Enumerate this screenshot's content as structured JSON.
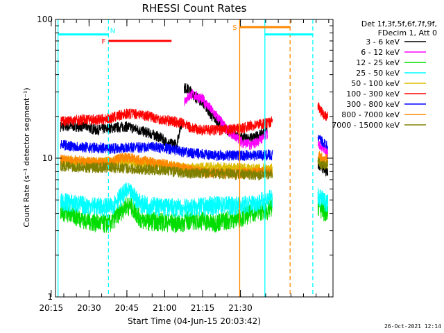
{
  "chart_data": {
    "type": "line",
    "title": "RHESSI Count Rates",
    "xlabel": "Start Time (04-Jun-15 20:03:42)",
    "ylabel": "Count Rate (s⁻¹ detector segment⁻¹)",
    "yscale": "log",
    "ylim": [
      1,
      100
    ],
    "xlim_minutes_after_start": [
      0,
      41
    ],
    "xticks": [
      {
        "label": "20:15",
        "minutes": 11.3
      },
      {
        "label": "20:30",
        "minutes": 26.3
      },
      {
        "label": "20:45",
        "minutes": 41.3
      },
      {
        "label": "21:00",
        "minutes": 56.3
      },
      {
        "label": "21:15",
        "minutes": 71.3
      },
      {
        "label": "21:30",
        "minutes": 86.3
      }
    ],
    "yticks": [
      {
        "label": "1",
        "value": 1
      },
      {
        "label": "10",
        "value": 10
      },
      {
        "label": "100",
        "value": 100
      }
    ],
    "legend_header": [
      "Det 1f,3f,5f,6f,7f,9f,",
      "FDecim 1, Att 0"
    ],
    "legend_placement": "right",
    "series": [
      {
        "name": "3 - 6 keV",
        "color": "#000000",
        "segments": [
          {
            "x": [
              0,
              10,
              14,
              20,
              26,
              31,
              36,
              40,
              42,
              46,
              48
            ],
            "y": [
              17,
              17,
              16,
              16.5,
              17,
              16,
              15,
              14,
              13,
              12.5,
              18
            ]
          },
          {
            "x": [
              49,
              50,
              52,
              53,
              56,
              60,
              66,
              72,
              76,
              78,
              80,
              82
            ],
            "y": [
              32,
              32,
              30,
              28,
              26,
              20,
              16,
              14,
              14,
              14.5,
              15,
              16
            ]
          },
          {
            "x": [
              102,
              104,
              106
            ],
            "y": [
              9,
              8.5,
              8
            ]
          }
        ]
      },
      {
        "name": "6 - 12 keV",
        "color": "#ff00ff",
        "segments": [
          {
            "x": [
              49,
              52,
              56,
              60,
              66,
              72,
              76,
              80,
              82
            ],
            "y": [
              26,
              29,
              27,
              22,
              16,
              13,
              12.5,
              14,
              15
            ]
          },
          {
            "x": [
              102,
              104,
              106
            ],
            "y": [
              13,
              12,
              11
            ]
          }
        ]
      },
      {
        "name": "12 - 25 keV",
        "color": "#00dd00",
        "segments": [
          {
            "x": [
              0,
              10,
              16,
              20,
              26,
              28,
              32,
              40,
              48,
              50,
              56,
              60,
              66,
              72,
              78,
              82,
              84
            ],
            "y": [
              4.2,
              3.6,
              3.4,
              3.4,
              4.6,
              4.5,
              3.6,
              3.5,
              3.4,
              3.6,
              3.6,
              3.4,
              3.6,
              3.8,
              4.2,
              4.2,
              4.5
            ]
          },
          {
            "x": [
              102,
              104,
              106
            ],
            "y": [
              4.6,
              4.2,
              4.0
            ]
          }
        ]
      },
      {
        "name": "25 - 50 keV",
        "color": "#00ffff",
        "segments": [
          {
            "x": [
              0,
              10,
              16,
              20,
              26,
              28,
              32,
              40,
              48,
              56,
              60,
              66,
              72,
              78,
              84
            ],
            "y": [
              4.9,
              4.6,
              4.5,
              4.5,
              5.8,
              5.6,
              4.7,
              4.5,
              4.4,
              4.5,
              4.6,
              4.6,
              4.6,
              4.8,
              5.2
            ]
          },
          {
            "x": [
              102,
              104,
              106
            ],
            "y": [
              5.3,
              5.0,
              4.8
            ]
          }
        ]
      },
      {
        "name": "50 - 100 keV",
        "color": "#ddbb00",
        "segments": [
          {
            "x": [
              0,
              10,
              20,
              30,
              40,
              50,
              60,
              70,
              78,
              84
            ],
            "y": [
              9.6,
              9.3,
              9.4,
              9.3,
              9.0,
              8.5,
              8.6,
              8.5,
              8.4,
              8.5
            ]
          },
          {
            "x": [
              102,
              104,
              106
            ],
            "y": [
              10,
              9.5,
              9.5
            ]
          }
        ]
      },
      {
        "name": "100 - 300 keV",
        "color": "#ff0000",
        "segments": [
          {
            "x": [
              0,
              10,
              16,
              20,
              26,
              30,
              36,
              40,
              48,
              52,
              56,
              60,
              66,
              72,
              78,
              82,
              84
            ],
            "y": [
              18.5,
              19,
              19,
              19.5,
              21,
              21,
              20,
              19,
              18,
              16.5,
              16,
              16,
              16,
              16.5,
              17.5,
              18,
              18.5
            ]
          },
          {
            "x": [
              102,
              103,
              104,
              106
            ],
            "y": [
              24,
              22,
              21,
              20
            ]
          }
        ]
      },
      {
        "name": "300 - 800 keV",
        "color": "#0000ff",
        "segments": [
          {
            "x": [
              0,
              10,
              20,
              30,
              40,
              50,
              60,
              70,
              78,
              84
            ],
            "y": [
              12.5,
              12,
              11.8,
              12,
              12,
              11,
              10.5,
              10.5,
              10.5,
              10.6
            ]
          },
          {
            "x": [
              102,
              104,
              106
            ],
            "y": [
              14,
              13,
              12.5
            ]
          }
        ]
      },
      {
        "name": "800 - 7000 keV",
        "color": "#ff8800",
        "segments": [
          {
            "x": [
              0,
              10,
              16,
              20,
              26,
              30,
              36,
              40,
              48,
              56,
              60,
              66,
              72,
              78,
              84
            ],
            "y": [
              9.8,
              9.5,
              9.3,
              9.5,
              10.2,
              9.8,
              9.4,
              9.2,
              8.5,
              8.0,
              7.9,
              7.8,
              7.8,
              7.9,
              8.0
            ]
          },
          {
            "x": [
              102,
              104,
              106
            ],
            "y": [
              10.5,
              10,
              9.8
            ]
          }
        ]
      },
      {
        "name": "7000 - 15000 keV",
        "color": "#808000",
        "segments": [
          {
            "x": [
              0,
              10,
              20,
              30,
              40,
              50,
              60,
              70,
              78,
              84
            ],
            "y": [
              8.8,
              8.6,
              8.6,
              8.4,
              8.2,
              7.8,
              7.8,
              7.7,
              7.6,
              7.8
            ]
          },
          {
            "x": [
              102,
              104,
              106
            ],
            "y": [
              9.4,
              9.0,
              9.0
            ]
          }
        ]
      }
    ],
    "markers": [
      {
        "label": "N",
        "color": "#00ffff",
        "x": [
          -1,
          19
        ],
        "y": 78
      },
      {
        "label": "F",
        "color": "#ff0000",
        "x": [
          19,
          44
        ],
        "y": 70
      },
      {
        "label": "S",
        "color": "#ff8800",
        "x": [
          71,
          91
        ],
        "y": 88
      },
      {
        "label": "",
        "color": "#00ffff",
        "x": [
          81,
          100
        ],
        "y": 78
      }
    ],
    "vertical_lines": [
      {
        "x": -1,
        "color": "#00ffff",
        "style": "solid"
      },
      {
        "x": 19,
        "color": "#00ffff",
        "style": "dashed"
      },
      {
        "x": 71,
        "color": "#ff8800",
        "style": "solid"
      },
      {
        "x": 81,
        "color": "#00ffff",
        "style": "solid"
      },
      {
        "x": 91,
        "color": "#ff8800",
        "style": "dashed"
      },
      {
        "x": 100,
        "color": "#00ffff",
        "style": "dashed"
      }
    ]
  },
  "timestamp": "26-Oct-2021 12:14"
}
